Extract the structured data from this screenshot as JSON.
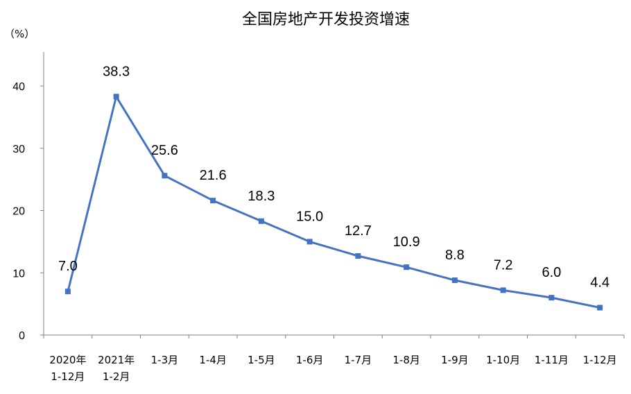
{
  "chart_data": {
    "type": "line",
    "title": "全国房地产开发投资增速",
    "ylabel": "（%）",
    "xlabel": "",
    "ylim": [
      0,
      40
    ],
    "yticks": [
      0,
      10,
      20,
      30,
      40
    ],
    "grid": false,
    "legend": "none",
    "line_color": "#4472C4",
    "categories": [
      [
        "2020年",
        "1-12月"
      ],
      [
        "2021年",
        "1-2月"
      ],
      [
        "1-3月"
      ],
      [
        "1-4月"
      ],
      [
        "1-5月"
      ],
      [
        "1-6月"
      ],
      [
        "1-7月"
      ],
      [
        "1-8月"
      ],
      [
        "1-9月"
      ],
      [
        "1-10月"
      ],
      [
        "1-11月"
      ],
      [
        "1-12月"
      ]
    ],
    "values": [
      7.0,
      38.3,
      25.6,
      21.6,
      18.3,
      15.0,
      12.7,
      10.9,
      8.8,
      7.2,
      6.0,
      4.4
    ],
    "data_labels": [
      "7.0",
      "38.3",
      "25.6",
      "21.6",
      "18.3",
      "15.0",
      "12.7",
      "10.9",
      "8.8",
      "7.2",
      "6.0",
      "4.4"
    ]
  }
}
